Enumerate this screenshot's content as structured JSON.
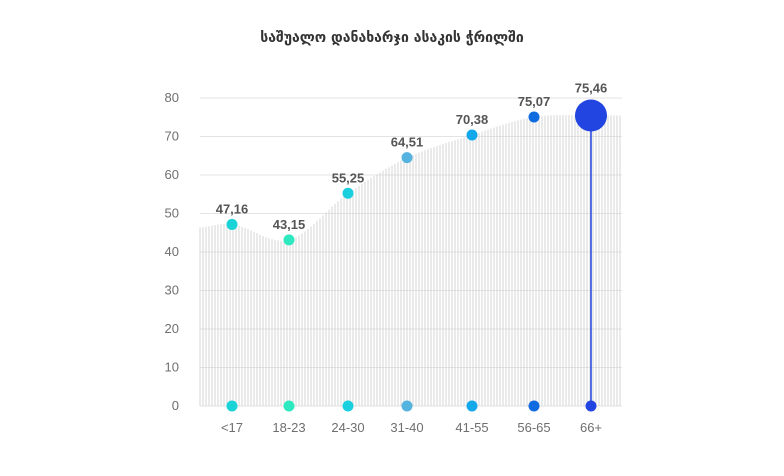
{
  "chart_data": {
    "type": "line",
    "title": "საშუალო დანახარჯი ასაკის ჭრილში",
    "xlabel": "",
    "ylabel": "",
    "categories": [
      "<17",
      "18-23",
      "24-30",
      "31-40",
      "41-55",
      "56-65",
      "66+"
    ],
    "series": [
      {
        "values": [
          47.16,
          43.15,
          55.25,
          64.51,
          70.38,
          75.07,
          75.46
        ],
        "labels": [
          "47,16",
          "43,15",
          "55,25",
          "64,51",
          "70,38",
          "75,07",
          "75,46"
        ],
        "colors": [
          "#19d3d6",
          "#2ee8c0",
          "#1ad0de",
          "#55b3df",
          "#12a8ea",
          "#0f6be0",
          "#2244e0"
        ]
      }
    ],
    "ylim": [
      0,
      80
    ],
    "yticks": [
      0,
      10,
      20,
      30,
      40,
      50,
      60,
      70,
      80
    ],
    "ytick_labels": [
      "0",
      "10",
      "20",
      "30",
      "40",
      "50",
      "60",
      "70",
      "80"
    ],
    "grid": true,
    "legend": "none",
    "highlight": {
      "index": 6,
      "color": "#2244e0"
    }
  }
}
